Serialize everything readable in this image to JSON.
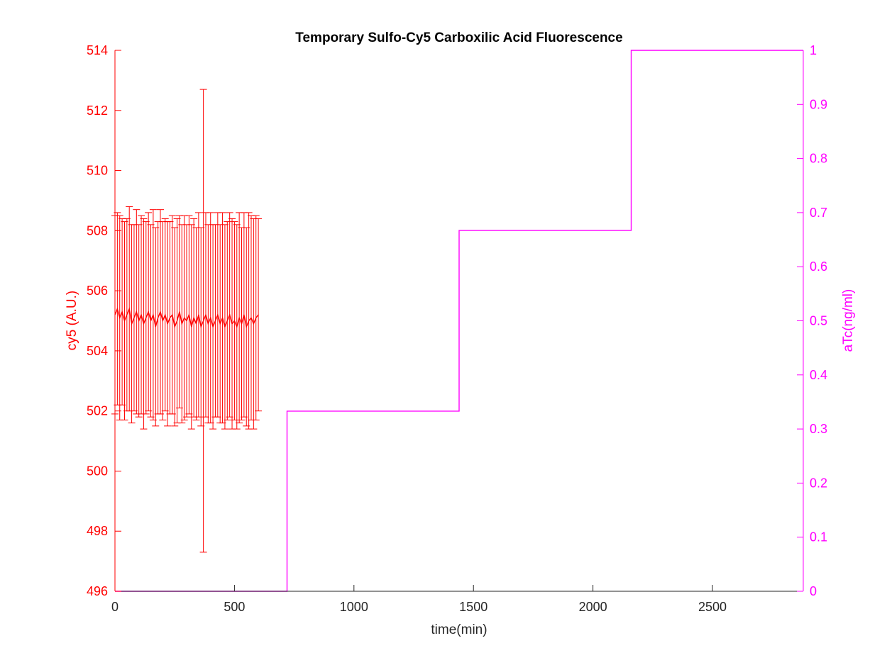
{
  "chart_data": {
    "type": "line",
    "title": "Temporary Sulfo-Cy5 Carboxilic Acid Fluorescence",
    "xlabel": "time(min)",
    "xlim": [
      0,
      2880
    ],
    "xticks": [
      0,
      500,
      1000,
      1500,
      2000,
      2500
    ],
    "xtick_labels": [
      "0",
      "500",
      "1000",
      "1500",
      "2000",
      "2500"
    ],
    "left_axis": {
      "ylabel": "cy5 (A.U.)",
      "color": "#ff0000",
      "ylim": [
        496,
        514
      ],
      "yticks": [
        496,
        498,
        500,
        502,
        504,
        506,
        508,
        510,
        512,
        514
      ],
      "ytick_labels": [
        "496",
        "498",
        "500",
        "502",
        "504",
        "506",
        "508",
        "510",
        "512",
        "514"
      ]
    },
    "right_axis": {
      "ylabel": "aTc(ng/ml)",
      "color": "#ff00ff",
      "ylim": [
        0,
        1
      ],
      "yticks": [
        0,
        0.1,
        0.2,
        0.3,
        0.4,
        0.5,
        0.6,
        0.7,
        0.8,
        0.9,
        1
      ],
      "ytick_labels": [
        "0",
        "0.1",
        "0.2",
        "0.3",
        "0.4",
        "0.5",
        "0.6",
        "0.7",
        "0.8",
        "0.9",
        "1"
      ]
    },
    "series": [
      {
        "axis": "left",
        "style": "line-with-errorbars",
        "color": "#ff0000",
        "x": [
          0,
          10,
          20,
          30,
          40,
          50,
          60,
          70,
          80,
          90,
          100,
          110,
          120,
          130,
          140,
          150,
          160,
          170,
          180,
          190,
          200,
          210,
          220,
          230,
          240,
          250,
          260,
          270,
          280,
          290,
          300,
          310,
          320,
          330,
          340,
          350,
          360,
          370,
          380,
          390,
          400,
          410,
          420,
          430,
          440,
          450,
          460,
          470,
          480,
          490,
          500,
          510,
          520,
          530,
          540,
          550,
          560,
          570,
          580,
          590,
          600
        ],
        "y": [
          505.2,
          505.4,
          505.1,
          505.3,
          505.0,
          505.2,
          505.4,
          504.9,
          505.1,
          505.3,
          505.0,
          505.2,
          504.9,
          505.1,
          505.3,
          505.0,
          505.2,
          504.8,
          505.1,
          505.3,
          505.0,
          505.2,
          504.9,
          505.1,
          505.2,
          504.8,
          505.0,
          505.3,
          504.9,
          505.1,
          505.0,
          505.2,
          504.8,
          505.1,
          504.9,
          505.2,
          504.8,
          505.0,
          505.2,
          504.9,
          505.1,
          504.8,
          505.0,
          505.2,
          504.9,
          505.1,
          504.8,
          505.0,
          505.2,
          504.9,
          505.0,
          504.8,
          505.1,
          504.9,
          505.2,
          504.8,
          505.0,
          505.1,
          504.9,
          505.1,
          505.2
        ],
        "err": [
          3.3,
          3.2,
          3.4,
          3.1,
          3.3,
          3.2,
          3.4,
          3.3,
          3.1,
          3.4,
          3.2,
          3.3,
          3.5,
          3.2,
          3.3,
          3.2,
          3.5,
          3.3,
          3.2,
          3.4,
          3.3,
          3.2,
          3.4,
          3.2,
          3.3,
          3.3,
          3.4,
          3.2,
          3.3,
          3.4,
          3.2,
          3.3,
          3.4,
          3.3,
          3.2,
          3.4,
          3.3,
          7.7,
          3.4,
          3.3,
          3.5,
          3.4,
          3.2,
          3.4,
          3.3,
          3.5,
          3.4,
          3.3,
          3.4,
          3.5,
          3.3,
          3.4,
          3.5,
          3.2,
          3.4,
          3.3,
          3.6,
          3.4,
          3.5,
          3.4,
          3.2
        ]
      },
      {
        "axis": "right",
        "style": "stairs",
        "color": "#ff00ff",
        "x": [
          0,
          720,
          1440,
          2160,
          2880
        ],
        "y": [
          0,
          0.333,
          0.667,
          1,
          1
        ]
      }
    ],
    "grid": false,
    "legend": "none"
  }
}
